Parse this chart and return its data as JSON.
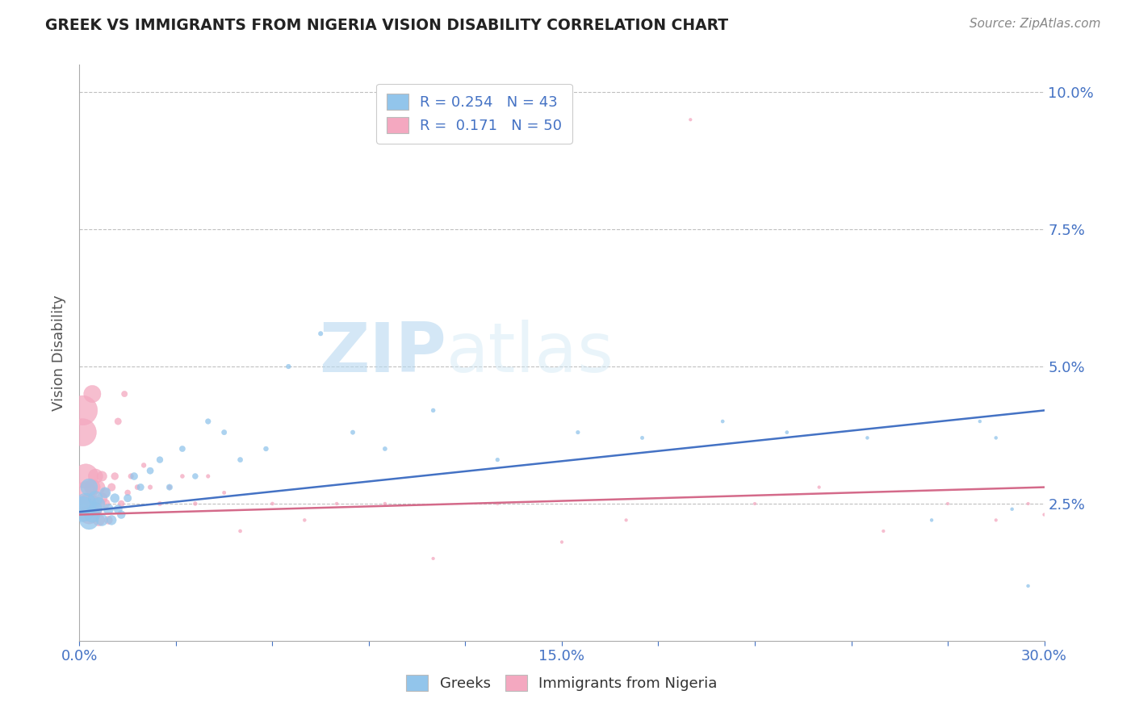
{
  "title": "GREEK VS IMMIGRANTS FROM NIGERIA VISION DISABILITY CORRELATION CHART",
  "source": "Source: ZipAtlas.com",
  "ylabel": "Vision Disability",
  "xlim": [
    0.0,
    0.3
  ],
  "ylim": [
    0.0,
    0.105
  ],
  "ytick_positions": [
    0.0,
    0.025,
    0.05,
    0.075,
    0.1
  ],
  "ytick_labels": [
    "",
    "2.5%",
    "5.0%",
    "7.5%",
    "10.0%"
  ],
  "xtick_positions": [
    0.0,
    0.03,
    0.06,
    0.09,
    0.12,
    0.15,
    0.18,
    0.21,
    0.24,
    0.27,
    0.3
  ],
  "xtick_labels": [
    "0.0%",
    "",
    "",
    "",
    "",
    "15.0%",
    "",
    "",
    "",
    "",
    "30.0%"
  ],
  "color_greek": "#92c5eb",
  "color_nigeria": "#f4a8c0",
  "color_line_greek": "#4472c4",
  "color_line_nigeria": "#d46a8a",
  "watermark_text": "ZIPatlas",
  "greek_x": [
    0.001,
    0.002,
    0.003,
    0.003,
    0.004,
    0.005,
    0.005,
    0.006,
    0.007,
    0.008,
    0.009,
    0.01,
    0.011,
    0.012,
    0.013,
    0.015,
    0.017,
    0.019,
    0.022,
    0.025,
    0.028,
    0.032,
    0.036,
    0.04,
    0.045,
    0.05,
    0.058,
    0.065,
    0.075,
    0.085,
    0.095,
    0.11,
    0.13,
    0.155,
    0.175,
    0.2,
    0.22,
    0.245,
    0.265,
    0.28,
    0.285,
    0.29,
    0.295
  ],
  "greek_y": [
    0.024,
    0.025,
    0.022,
    0.028,
    0.023,
    0.026,
    0.024,
    0.025,
    0.022,
    0.027,
    0.024,
    0.022,
    0.026,
    0.024,
    0.023,
    0.026,
    0.03,
    0.028,
    0.031,
    0.033,
    0.028,
    0.035,
    0.03,
    0.04,
    0.038,
    0.033,
    0.035,
    0.05,
    0.056,
    0.038,
    0.035,
    0.042,
    0.033,
    0.038,
    0.037,
    0.04,
    0.038,
    0.037,
    0.022,
    0.04,
    0.037,
    0.024,
    0.01
  ],
  "nigeria_x": [
    0.001,
    0.001,
    0.002,
    0.002,
    0.003,
    0.003,
    0.004,
    0.004,
    0.005,
    0.005,
    0.006,
    0.006,
    0.007,
    0.007,
    0.008,
    0.008,
    0.009,
    0.01,
    0.011,
    0.012,
    0.013,
    0.014,
    0.015,
    0.016,
    0.018,
    0.02,
    0.022,
    0.025,
    0.028,
    0.032,
    0.036,
    0.04,
    0.045,
    0.05,
    0.06,
    0.07,
    0.08,
    0.095,
    0.11,
    0.13,
    0.15,
    0.17,
    0.19,
    0.21,
    0.23,
    0.25,
    0.27,
    0.285,
    0.295,
    0.3
  ],
  "nigeria_y": [
    0.042,
    0.038,
    0.03,
    0.027,
    0.025,
    0.023,
    0.045,
    0.028,
    0.03,
    0.024,
    0.028,
    0.022,
    0.026,
    0.03,
    0.025,
    0.027,
    0.022,
    0.028,
    0.03,
    0.04,
    0.025,
    0.045,
    0.027,
    0.03,
    0.028,
    0.032,
    0.028,
    0.025,
    0.028,
    0.03,
    0.025,
    0.03,
    0.027,
    0.02,
    0.025,
    0.022,
    0.025,
    0.025,
    0.015,
    0.025,
    0.018,
    0.022,
    0.095,
    0.025,
    0.028,
    0.02,
    0.025,
    0.022,
    0.025,
    0.023
  ],
  "greek_sizes": [
    500,
    350,
    280,
    230,
    190,
    160,
    140,
    120,
    105,
    92,
    82,
    72,
    64,
    57,
    51,
    46,
    42,
    38,
    35,
    32,
    29,
    27,
    25,
    23,
    21,
    20,
    18,
    17,
    16,
    15,
    14,
    13,
    12,
    11,
    10,
    9,
    9,
    8,
    8,
    8,
    8,
    8,
    8
  ],
  "nigeria_sizes": [
    700,
    600,
    480,
    400,
    330,
    280,
    235,
    200,
    170,
    145,
    125,
    108,
    93,
    80,
    70,
    61,
    53,
    47,
    41,
    36,
    32,
    28,
    25,
    22,
    20,
    18,
    16,
    15,
    14,
    13,
    12,
    11,
    10,
    9,
    9,
    8,
    8,
    8,
    7,
    7,
    7,
    7,
    7,
    7,
    7,
    7,
    7,
    7,
    7,
    7
  ],
  "line_greek_x0": 0.0,
  "line_greek_x1": 0.3,
  "line_greek_y0": 0.0235,
  "line_greek_y1": 0.042,
  "line_nigeria_x0": 0.0,
  "line_nigeria_x1": 0.3,
  "line_nigeria_y0": 0.023,
  "line_nigeria_y1": 0.028
}
